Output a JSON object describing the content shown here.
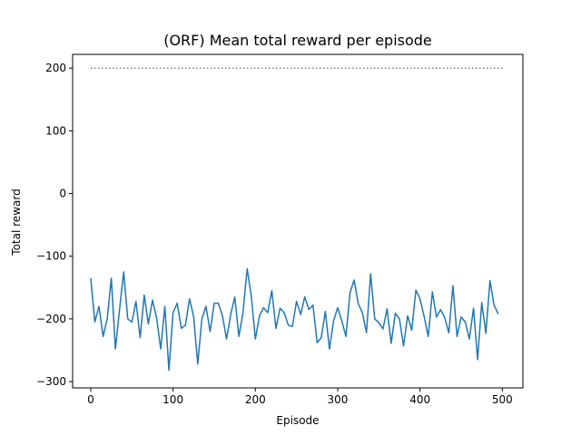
{
  "chart_data": {
    "type": "line",
    "title": "(ORF) Mean total reward per episode",
    "xlabel": "Episode",
    "ylabel": "Total reward",
    "xlim": [
      -22,
      525
    ],
    "ylim": [
      -310,
      222
    ],
    "x_ticks": [
      0,
      100,
      200,
      300,
      400,
      500
    ],
    "y_ticks": [
      -300,
      -200,
      -100,
      0,
      100,
      200
    ],
    "y_tick_labels": [
      "−300",
      "−200",
      "−100",
      "0",
      "100",
      "200"
    ],
    "grid": false,
    "reference_line": {
      "y": 200,
      "x_range": [
        0,
        500
      ],
      "style": "dotted",
      "color": "#808080"
    },
    "series": [
      {
        "color": "#1f77b4",
        "x_start": 0,
        "x_step": 5,
        "values": [
          -135,
          -205,
          -180,
          -228,
          -200,
          -135,
          -248,
          -185,
          -125,
          -200,
          -205,
          -172,
          -230,
          -162,
          -208,
          -170,
          -198,
          -248,
          -180,
          -282,
          -190,
          -175,
          -215,
          -210,
          -168,
          -196,
          -272,
          -200,
          -180,
          -220,
          -175,
          -175,
          -195,
          -232,
          -193,
          -165,
          -228,
          -190,
          -120,
          -163,
          -232,
          -195,
          -182,
          -190,
          -155,
          -215,
          -183,
          -190,
          -210,
          -212,
          -172,
          -193,
          -165,
          -185,
          -178,
          -238,
          -230,
          -188,
          -248,
          -203,
          -182,
          -203,
          -228,
          -158,
          -138,
          -176,
          -190,
          -222,
          -128,
          -200,
          -206,
          -216,
          -184,
          -239,
          -191,
          -200,
          -243,
          -195,
          -218,
          -154,
          -168,
          -196,
          -228,
          -157,
          -197,
          -185,
          -198,
          -222,
          -147,
          -228,
          -197,
          -205,
          -232,
          -183,
          -265,
          -174,
          -223,
          -139,
          -178,
          -192
        ]
      }
    ]
  }
}
